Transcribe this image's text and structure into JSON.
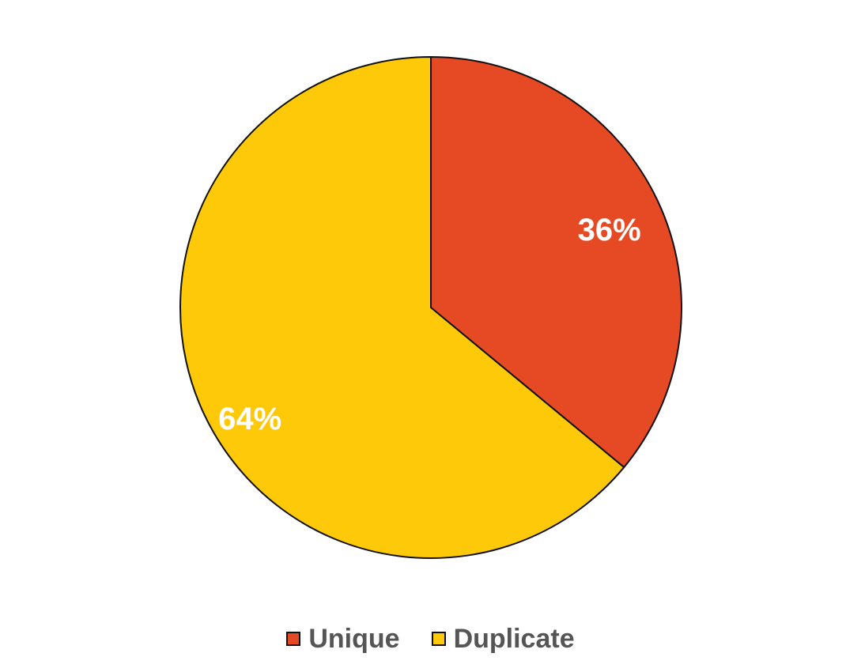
{
  "chart_data": {
    "type": "pie",
    "categories": [
      "Unique",
      "Duplicate"
    ],
    "values": [
      36,
      64
    ],
    "data_labels": [
      "36%",
      "64%"
    ],
    "colors": [
      "#E54A24",
      "#FDC908"
    ],
    "legend_position": "bottom-center",
    "start_angle": "top",
    "direction": "clockwise"
  }
}
